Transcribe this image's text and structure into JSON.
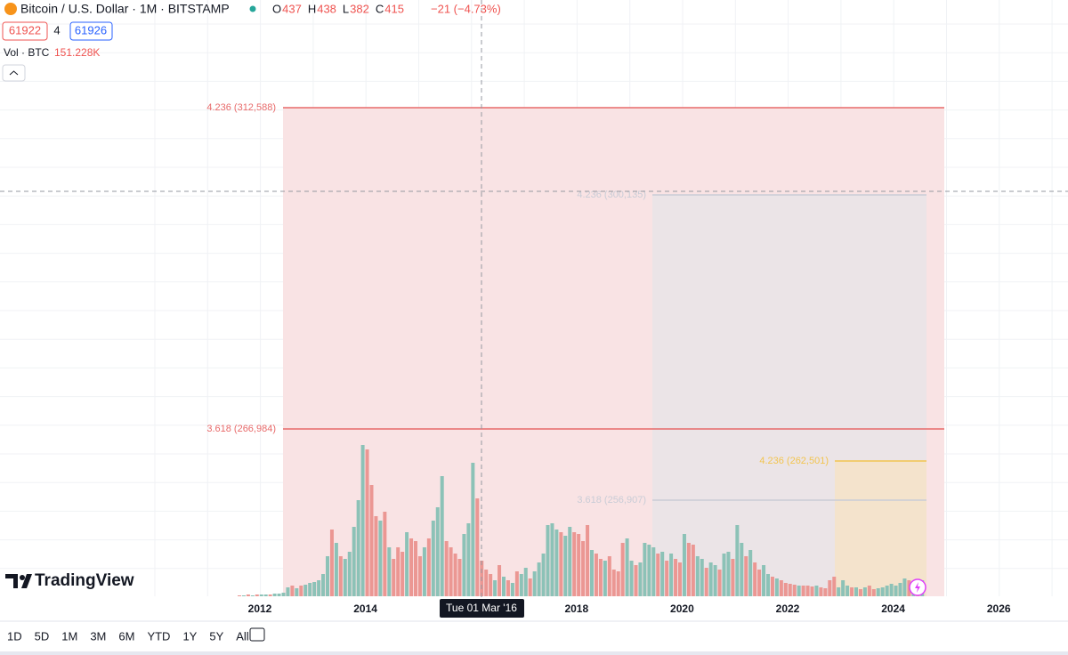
{
  "header": {
    "symbol": "Bitcoin / U.S. Dollar · 1M · BITSTAMP",
    "ohlc": [
      {
        "key": "O",
        "value": "437"
      },
      {
        "key": "H",
        "value": "438"
      },
      {
        "key": "L",
        "value": "382"
      },
      {
        "key": "C",
        "value": "415"
      }
    ],
    "change": "−21 (−4.73%)",
    "sell": "61922",
    "spread": "4",
    "buy": "61926",
    "volume_label": "Vol · BTC",
    "volume_value": "151.228K"
  },
  "fib_levels": [
    {
      "label": "4.236 (312,588)",
      "color": "#e86a6a"
    },
    {
      "label": "3.618 (266,984)",
      "color": "#e86a6a"
    },
    {
      "label": "4.236 (300,135)",
      "color": "#c9ccd6"
    },
    {
      "label": "3.618 (256,907)",
      "color": "#c9ccd6"
    },
    {
      "label": "4.236 (262,501)",
      "color": "#f2c44f"
    }
  ],
  "x_axis": {
    "labels": [
      "2012",
      "2014",
      "2018",
      "2020",
      "2022",
      "2024",
      "2026"
    ],
    "crosshair": "Tue 01 Mar '16"
  },
  "volume": {
    "values": [
      1,
      1,
      2,
      1,
      2,
      2,
      2,
      2,
      3,
      3,
      4,
      10,
      12,
      9,
      12,
      13,
      15,
      16,
      18,
      25,
      45,
      75,
      60,
      45,
      42,
      50,
      78,
      108,
      170,
      165,
      125,
      90,
      85,
      95,
      55,
      42,
      55,
      50,
      72,
      65,
      62,
      45,
      55,
      65,
      85,
      100,
      135,
      62,
      55,
      48,
      42,
      70,
      82,
      150,
      110,
      40,
      30,
      25,
      18,
      35,
      22,
      18,
      15,
      28,
      25,
      32,
      20,
      28,
      38,
      48,
      80,
      82,
      75,
      72,
      68,
      78,
      72,
      70,
      62,
      80,
      52,
      48,
      42,
      40,
      45,
      30,
      28,
      60,
      65,
      40,
      35,
      38,
      60,
      58,
      55,
      48,
      50,
      40,
      48,
      42,
      38,
      70,
      60,
      58,
      45,
      42,
      32,
      38,
      35,
      30,
      48,
      50,
      42,
      80,
      60,
      45,
      52,
      38,
      30,
      35,
      25,
      22,
      20,
      18,
      15,
      14,
      13,
      12,
      12,
      12,
      11,
      12,
      10,
      9,
      18,
      22,
      10,
      18,
      12,
      10,
      10,
      8,
      10,
      12,
      8,
      9,
      10,
      12,
      14,
      12,
      15,
      20,
      18,
      15,
      18,
      18
    ],
    "colors": [
      "#eb9793",
      "#8cc2b7",
      "#eb9793",
      "#8cc2b7",
      "#eb9793",
      "#8cc2b7",
      "#8cc2b7",
      "#eb9793",
      "#8cc2b7",
      "#8cc2b7",
      "#8cc2b7",
      "#8cc2b7",
      "#eb9793",
      "#8cc2b7",
      "#eb9793",
      "#8cc2b7",
      "#8cc2b7",
      "#8cc2b7",
      "#8cc2b7",
      "#8cc2b7",
      "#8cc2b7",
      "#eb9793",
      "#8cc2b7",
      "#eb9793",
      "#8cc2b7",
      "#8cc2b7",
      "#8cc2b7",
      "#8cc2b7",
      "#8cc2b7",
      "#eb9793",
      "#eb9793",
      "#eb9793",
      "#8cc2b7",
      "#eb9793",
      "#8cc2b7",
      "#eb9793",
      "#eb9793",
      "#eb9793",
      "#8cc2b7",
      "#eb9793",
      "#eb9793",
      "#eb9793",
      "#8cc2b7",
      "#eb9793",
      "#8cc2b7",
      "#8cc2b7",
      "#8cc2b7",
      "#eb9793",
      "#eb9793",
      "#eb9793",
      "#eb9793",
      "#8cc2b7",
      "#8cc2b7",
      "#8cc2b7",
      "#eb9793",
      "#eb9793",
      "#eb9793",
      "#eb9793",
      "#8cc2b7",
      "#eb9793",
      "#8cc2b7",
      "#eb9793",
      "#8cc2b7",
      "#eb9793",
      "#8cc2b7",
      "#8cc2b7",
      "#eb9793",
      "#8cc2b7",
      "#8cc2b7",
      "#8cc2b7",
      "#8cc2b7",
      "#8cc2b7",
      "#8cc2b7",
      "#eb9793",
      "#8cc2b7",
      "#8cc2b7",
      "#eb9793",
      "#eb9793",
      "#eb9793",
      "#eb9793",
      "#8cc2b7",
      "#eb9793",
      "#eb9793",
      "#8cc2b7",
      "#eb9793",
      "#eb9793",
      "#eb9793",
      "#eb9793",
      "#8cc2b7",
      "#8cc2b7",
      "#eb9793",
      "#8cc2b7",
      "#8cc2b7",
      "#8cc2b7",
      "#8cc2b7",
      "#eb9793",
      "#8cc2b7",
      "#eb9793",
      "#8cc2b7",
      "#eb9793",
      "#eb9793",
      "#8cc2b7",
      "#eb9793",
      "#eb9793",
      "#8cc2b7",
      "#8cc2b7",
      "#eb9793",
      "#8cc2b7",
      "#8cc2b7",
      "#eb9793",
      "#8cc2b7",
      "#8cc2b7",
      "#eb9793",
      "#8cc2b7",
      "#8cc2b7",
      "#eb9793",
      "#8cc2b7",
      "#eb9793",
      "#eb9793",
      "#8cc2b7",
      "#8cc2b7",
      "#eb9793",
      "#8cc2b7",
      "#eb9793",
      "#eb9793",
      "#eb9793",
      "#eb9793",
      "#8cc2b7",
      "#eb9793",
      "#eb9793",
      "#eb9793",
      "#8cc2b7",
      "#eb9793",
      "#eb9793",
      "#eb9793",
      "#eb9793",
      "#8cc2b7",
      "#8cc2b7",
      "#8cc2b7",
      "#eb9793",
      "#8cc2b7",
      "#eb9793",
      "#8cc2b7",
      "#eb9793",
      "#eb9793",
      "#8cc2b7",
      "#8cc2b7",
      "#8cc2b7",
      "#8cc2b7",
      "#8cc2b7",
      "#8cc2b7",
      "#8cc2b7",
      "#eb9793",
      "#8cc2b7",
      "#eb9793",
      "#8cc2b7"
    ]
  },
  "logo": "TradingView",
  "toolbar": [
    "1D",
    "5D",
    "1M",
    "3M",
    "6M",
    "YTD",
    "1Y",
    "5Y",
    "All"
  ]
}
